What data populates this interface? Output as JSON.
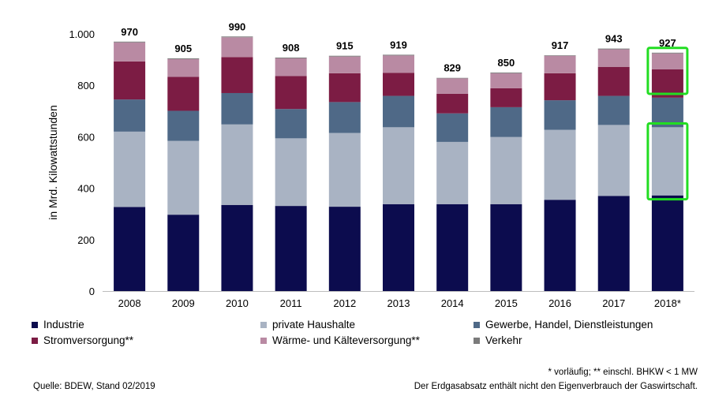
{
  "chart_data": {
    "type": "bar",
    "stacked": true,
    "ylabel": "in Mrd. Kilowattstunden",
    "xlabel": "",
    "ylim": [
      0,
      1000
    ],
    "yticks": [
      0,
      200,
      400,
      600,
      800,
      1000
    ],
    "ytick_labels": [
      "0",
      "200",
      "400",
      "600",
      "800",
      "1.000"
    ],
    "categories": [
      "2008",
      "2009",
      "2010",
      "2011",
      "2012",
      "2013",
      "2014",
      "2015",
      "2016",
      "2017",
      "2018*"
    ],
    "totals": [
      970,
      905,
      990,
      908,
      915,
      919,
      829,
      850,
      917,
      943,
      927
    ],
    "series": [
      {
        "name": "Industrie",
        "color": "#0c0c4e",
        "values": [
          327,
          297,
          335,
          331,
          328,
          338,
          338,
          338,
          355,
          370,
          372
        ]
      },
      {
        "name": "private Haushalte",
        "color": "#a9b3c3",
        "values": [
          293,
          287,
          313,
          263,
          287,
          299,
          242,
          261,
          272,
          276,
          265
        ]
      },
      {
        "name": "Gewerbe, Handel, Dienstleistungen",
        "color": "#4f6987",
        "values": [
          125,
          117,
          122,
          114,
          120,
          122,
          111,
          116,
          115,
          113,
          115
        ]
      },
      {
        "name": "Stromversorgung**",
        "color": "#7c1c44",
        "values": [
          148,
          132,
          140,
          128,
          112,
          90,
          76,
          74,
          105,
          113,
          110
        ]
      },
      {
        "name": "Wärme- und Kälteversorgung**",
        "color": "#b98aa3",
        "values": [
          74,
          69,
          77,
          69,
          65,
          67,
          60,
          58,
          68,
          68,
          62
        ]
      },
      {
        "name": "Verkehr",
        "color": "#7b7b7b",
        "values": [
          3,
          3,
          3,
          3,
          3,
          3,
          2,
          3,
          2,
          3,
          3
        ]
      }
    ],
    "grid": false,
    "legend_position": "bottom",
    "highlight_color": "#22dd22"
  },
  "notes": {
    "source": "Quelle: BDEW, Stand 02/2019",
    "footnote": "* vorläufig; ** einschl. BHKW < 1 MW",
    "disclaimer": "Der Erdgasabsatz enthält nicht den Eigenverbrauch der Gaswirtschaft."
  }
}
